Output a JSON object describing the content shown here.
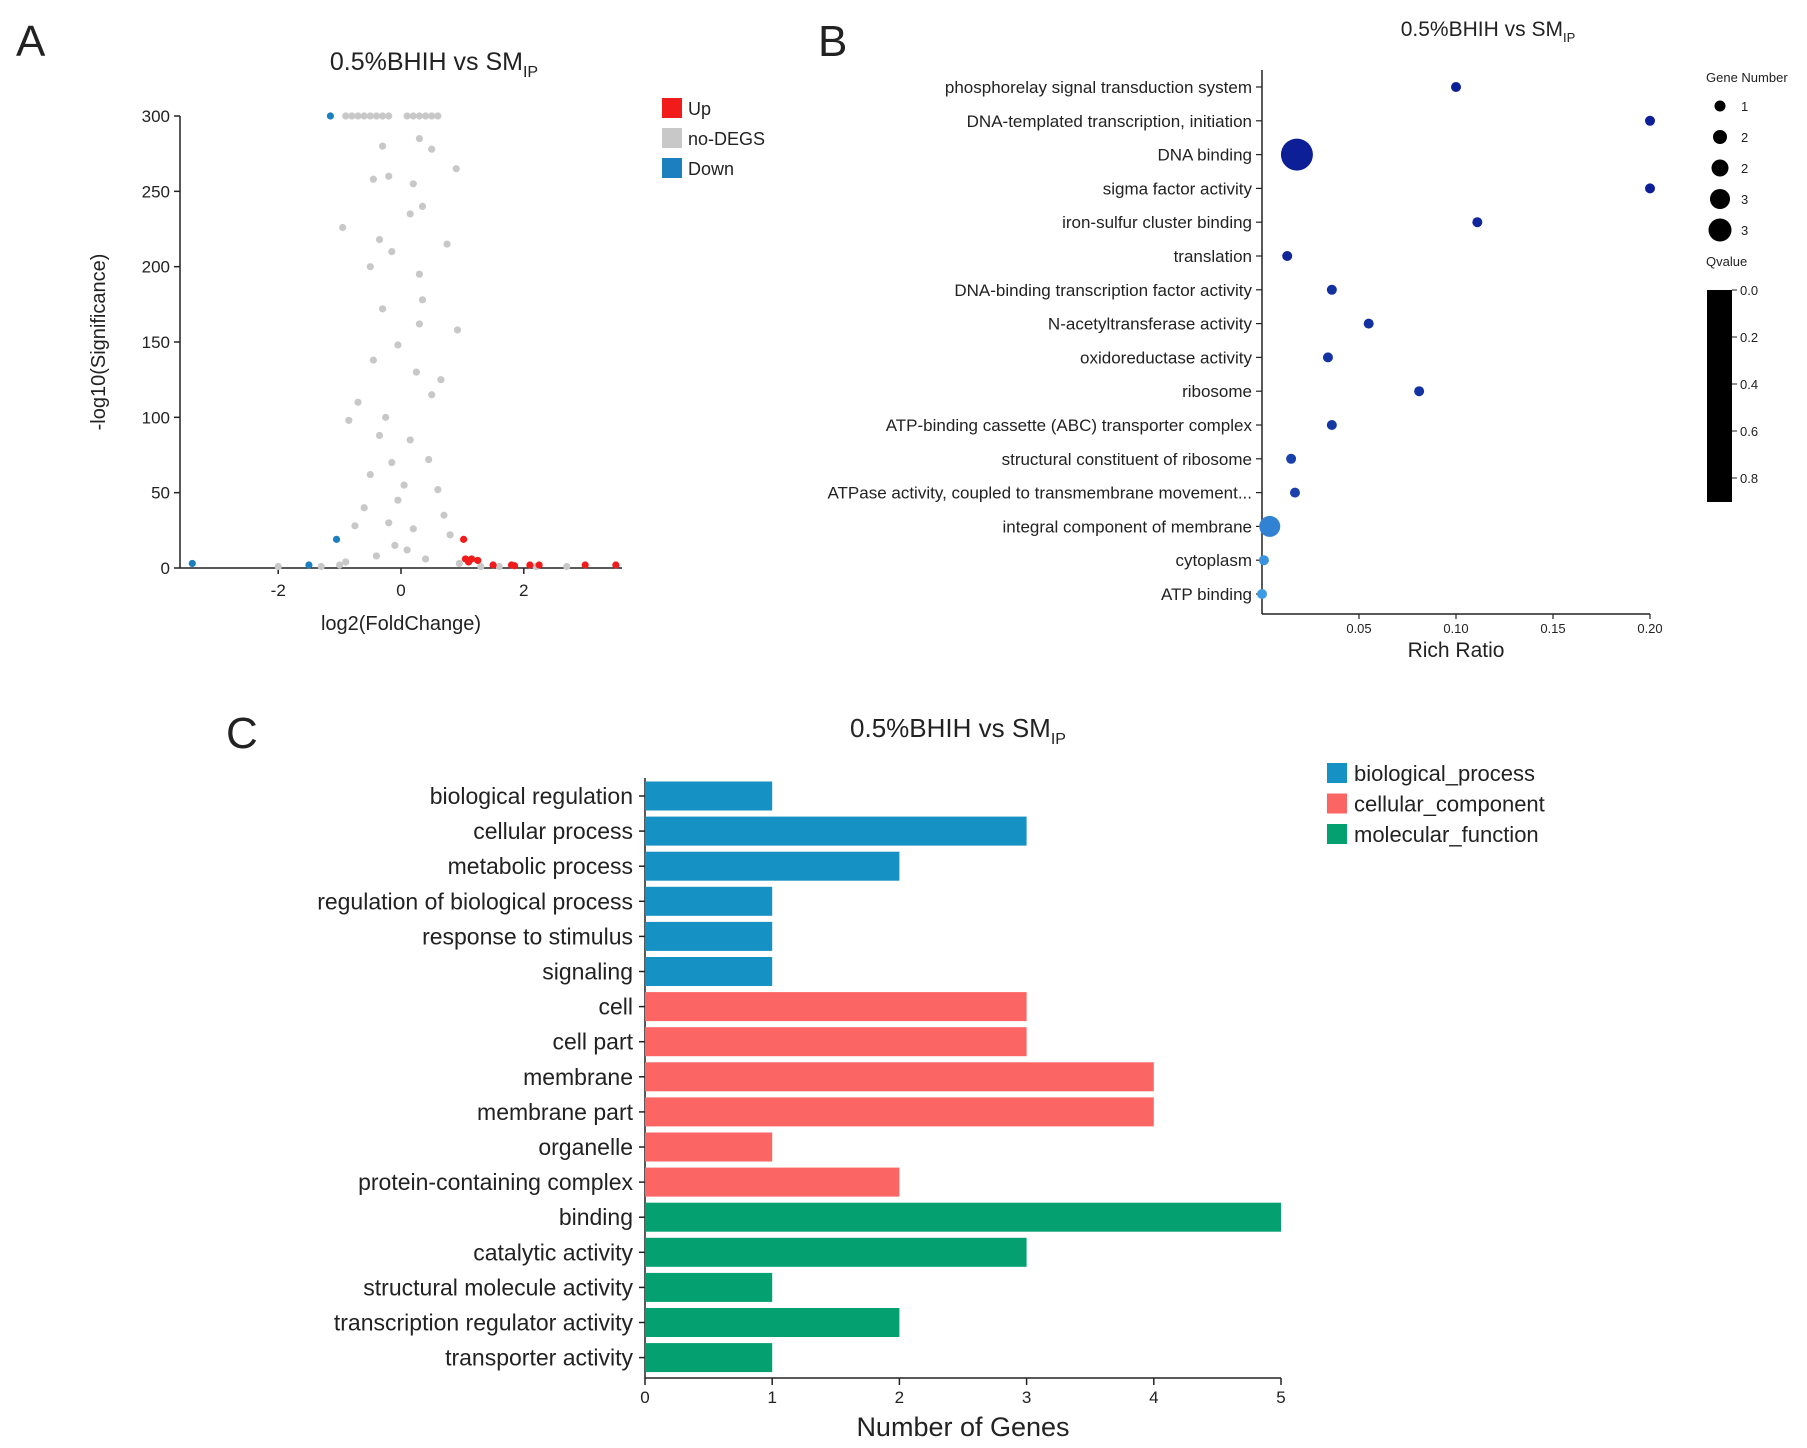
{
  "colors": {
    "up": "#f21b1b",
    "nodegs": "#c8c8c8",
    "down": "#1c7fbf",
    "bio": "#1592c3",
    "cell": "#fb6563",
    "mol": "#04a06f",
    "dot_dark": "#0c1f96",
    "dot_light": "#3fa3e8"
  },
  "chart_data": [
    {
      "panel_label": "A",
      "type": "scatter",
      "title_main": "0.5%BHIH vs SM",
      "title_sub": "IP",
      "xlabel": "log2(FoldChange)",
      "ylabel": "-log10(Significance)",
      "xlim": [
        -3.6,
        3.6
      ],
      "ylim": [
        0,
        300
      ],
      "x_ticks": [
        -2,
        0,
        2
      ],
      "x_tick_labels": [
        "-2",
        "0",
        "2"
      ],
      "y_ticks": [
        0,
        50,
        100,
        150,
        200,
        250,
        300
      ],
      "y_tick_labels": [
        "0",
        "50",
        "100",
        "150",
        "200",
        "250",
        "300"
      ],
      "legend_position": "top-right",
      "legend": [
        {
          "label": "Up",
          "color_key": "up"
        },
        {
          "label": "no-DEGS",
          "color_key": "nodegs"
        },
        {
          "label": "Down",
          "color_key": "down"
        }
      ],
      "series": [
        {
          "name": "Up",
          "color_key": "up",
          "points": [
            [
              1.02,
              19
            ],
            [
              1.05,
              6
            ],
            [
              1.1,
              4
            ],
            [
              1.15,
              6
            ],
            [
              1.25,
              5
            ],
            [
              1.5,
              2
            ],
            [
              1.8,
              2
            ],
            [
              1.85,
              1.5
            ],
            [
              2.1,
              2
            ],
            [
              2.25,
              2
            ],
            [
              3.0,
              2
            ],
            [
              3.5,
              2
            ]
          ]
        },
        {
          "name": "Down",
          "color_key": "down",
          "points": [
            [
              -3.4,
              3
            ],
            [
              -1.05,
              19
            ],
            [
              -1.5,
              2
            ],
            [
              -1.15,
              300
            ]
          ]
        },
        {
          "name": "no-DEGS",
          "color_key": "nodegs",
          "points": [
            [
              -0.9,
              300
            ],
            [
              -0.8,
              300
            ],
            [
              -0.7,
              300
            ],
            [
              -0.6,
              300
            ],
            [
              -0.5,
              300
            ],
            [
              -0.4,
              300
            ],
            [
              -0.3,
              300
            ],
            [
              -0.2,
              300
            ],
            [
              0.1,
              300
            ],
            [
              0.2,
              300
            ],
            [
              0.3,
              300
            ],
            [
              0.4,
              300
            ],
            [
              0.5,
              300
            ],
            [
              0.6,
              300
            ],
            [
              -0.3,
              280
            ],
            [
              0.3,
              285
            ],
            [
              -0.2,
              260
            ],
            [
              0.2,
              255
            ],
            [
              0.5,
              278
            ],
            [
              -0.45,
              258
            ],
            [
              0.9,
              265
            ],
            [
              -0.95,
              226
            ],
            [
              0.75,
              215
            ],
            [
              -0.5,
              200
            ],
            [
              0.3,
              195
            ],
            [
              -0.15,
              210
            ],
            [
              0.15,
              235
            ],
            [
              -0.3,
              172
            ],
            [
              0.3,
              162
            ],
            [
              0.92,
              158
            ],
            [
              -0.85,
              98
            ],
            [
              -0.7,
              110
            ],
            [
              0.65,
              125
            ],
            [
              -0.45,
              138
            ],
            [
              0.5,
              115
            ],
            [
              -0.35,
              88
            ],
            [
              0.45,
              72
            ],
            [
              -0.5,
              62
            ],
            [
              0.6,
              52
            ],
            [
              -0.6,
              40
            ],
            [
              0.7,
              35
            ],
            [
              -0.75,
              28
            ],
            [
              0.8,
              22
            ],
            [
              -0.2,
              30
            ],
            [
              0.2,
              26
            ],
            [
              -0.1,
              15
            ],
            [
              0.1,
              12
            ],
            [
              -0.4,
              8
            ],
            [
              0.4,
              6
            ],
            [
              -1.0,
              2
            ],
            [
              -0.9,
              4
            ],
            [
              0.95,
              3
            ],
            [
              1.3,
              1
            ],
            [
              -1.3,
              1
            ],
            [
              -2.0,
              1
            ],
            [
              1.6,
              1
            ],
            [
              2.7,
              1
            ],
            [
              2.2,
              1
            ],
            [
              -0.05,
              45
            ],
            [
              0.05,
              55
            ],
            [
              -0.15,
              70
            ],
            [
              0.15,
              85
            ],
            [
              -0.25,
              100
            ],
            [
              0.25,
              130
            ],
            [
              -0.05,
              148
            ],
            [
              0.35,
              178
            ],
            [
              -0.35,
              218
            ],
            [
              0.35,
              240
            ]
          ]
        }
      ]
    },
    {
      "panel_label": "B",
      "type": "scatter",
      "title_main": "0.5%BHIH vs SM",
      "title_sub": "IP",
      "xlabel": "Rich Ratio",
      "ylabel": "",
      "xlim": [
        0.0,
        0.2
      ],
      "x_ticks": [
        0.05,
        0.1,
        0.15,
        0.2
      ],
      "x_tick_labels": [
        "0.05",
        "0.10",
        "0.15",
        "0.20"
      ],
      "size_legend_title": "Gene Number",
      "size_legend_labels": [
        "1",
        "2",
        "2",
        "3",
        "3"
      ],
      "color_legend_title": "Qvalue",
      "color_legend_labels": [
        "0.0",
        "0.2",
        "0.4",
        "0.6",
        "0.8"
      ],
      "categories": [
        "phosphorelay signal transduction system",
        "DNA-templated transcription, initiation",
        "DNA binding",
        "sigma factor activity",
        "iron-sulfur cluster binding",
        "translation",
        "DNA-binding transcription factor activity",
        "N-acetyltransferase activity",
        "oxidoreductase activity",
        "ribosome",
        "ATP-binding cassette (ABC) transporter complex",
        "structural constituent of ribosome",
        "ATPase activity, coupled to transmembrane movement...",
        "integral component of membrane",
        "cytoplasm",
        "ATP binding"
      ],
      "rich_ratio": [
        0.1,
        0.2,
        0.018,
        0.2,
        0.111,
        0.013,
        0.036,
        0.055,
        0.034,
        0.081,
        0.036,
        0.015,
        0.017,
        0.004,
        0.001,
        0.0
      ],
      "gene_number": [
        1,
        1,
        3,
        1,
        1,
        1,
        1,
        1,
        1,
        1,
        1,
        1,
        1,
        2,
        1,
        1
      ],
      "qvalue": [
        0.0,
        0.0,
        0.0,
        0.0,
        0.05,
        0.05,
        0.1,
        0.1,
        0.12,
        0.12,
        0.15,
        0.2,
        0.2,
        0.6,
        0.7,
        0.75
      ]
    },
    {
      "panel_label": "C",
      "type": "bar",
      "orientation": "horizontal",
      "title_main": "0.5%BHIH vs SM",
      "title_sub": "IP",
      "xlabel": "Number of Genes",
      "xlim": [
        0,
        5
      ],
      "x_ticks": [
        0,
        1,
        2,
        3,
        4,
        5
      ],
      "x_tick_labels": [
        "0",
        "1",
        "2",
        "3",
        "4",
        "5"
      ],
      "legend_position": "top-right",
      "legend": [
        {
          "label": "biological_process",
          "color_key": "bio"
        },
        {
          "label": "cellular_component",
          "color_key": "cell"
        },
        {
          "label": "molecular_function",
          "color_key": "mol"
        }
      ],
      "categories": [
        "biological regulation",
        "cellular process",
        "metabolic process",
        "regulation of biological process",
        "response to stimulus",
        "signaling",
        "cell",
        "cell part",
        "membrane",
        "membrane part",
        "organelle",
        "protein-containing complex",
        "binding",
        "catalytic activity",
        "structural molecule activity",
        "transcription regulator activity",
        "transporter activity"
      ],
      "values": [
        1,
        3,
        2,
        1,
        1,
        1,
        3,
        3,
        4,
        4,
        1,
        2,
        5,
        3,
        1,
        2,
        1
      ],
      "groups": [
        "bio",
        "bio",
        "bio",
        "bio",
        "bio",
        "bio",
        "cell",
        "cell",
        "cell",
        "cell",
        "cell",
        "cell",
        "mol",
        "mol",
        "mol",
        "mol",
        "mol"
      ]
    }
  ]
}
